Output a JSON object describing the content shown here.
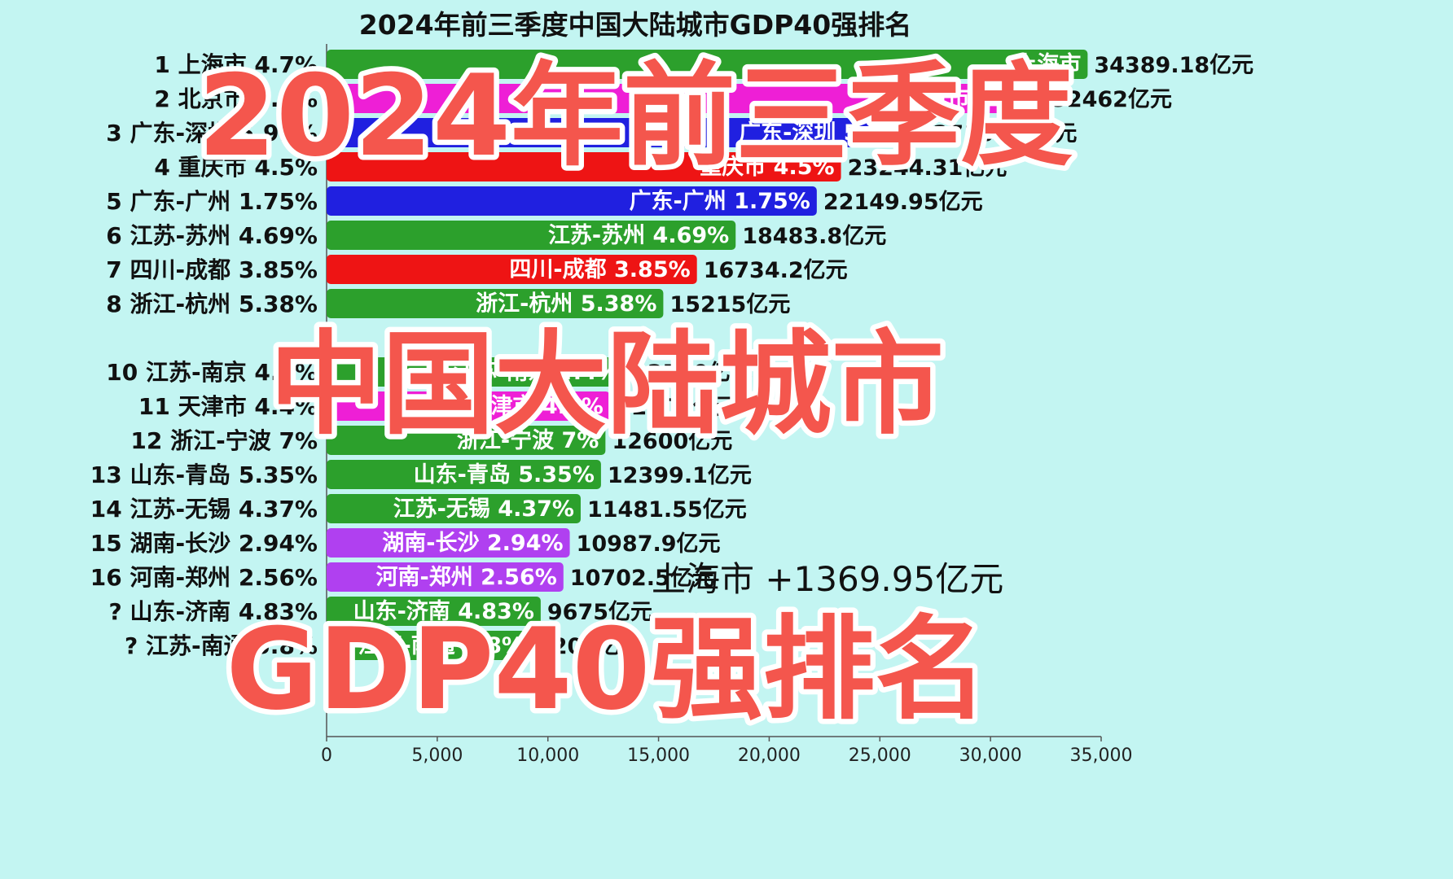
{
  "chart_data": {
    "type": "bar",
    "orientation": "horizontal",
    "title": "2024年前三季度中国大陆城市GDP40强排名",
    "xlim": [
      0,
      35000
    ],
    "xticks": [
      "0",
      "5,000",
      "10,000",
      "15,000",
      "20,000",
      "25,000",
      "30,000",
      "35,000"
    ],
    "unit": "亿元",
    "bars": [
      {
        "label": "1 上海市 4.7%",
        "bar_text": "上海市",
        "value": 34389.18,
        "value_text": "34389.18亿元",
        "color": "#2ca02c"
      },
      {
        "label": "2 北京市 5.2%",
        "bar_text": "北京市 5.2%",
        "value": 32462,
        "value_text": "32462亿元",
        "color": "#ee1fd6"
      },
      {
        "label": "3 广东-深圳 5.99%",
        "bar_text": "广东-深圳 5.99%",
        "value": 27104.2,
        "value_text": "27104.2亿元",
        "color": "#2020e0"
      },
      {
        "label": "4 重庆市 4.5%",
        "bar_text": "重庆市 4.5%",
        "value": 23244.31,
        "value_text": "23244.31亿元",
        "color": "#ee1414"
      },
      {
        "label": "5 广东-广州 1.75%",
        "bar_text": "广东-广州 1.75%",
        "value": 22149.95,
        "value_text": "22149.95亿元",
        "color": "#2020e0"
      },
      {
        "label": "6 江苏-苏州 4.69%",
        "bar_text": "江苏-苏州 4.69%",
        "value": 18483.8,
        "value_text": "18483.8亿元",
        "color": "#2ca02c"
      },
      {
        "label": "7 四川-成都 3.85%",
        "bar_text": "四川-成都 3.85%",
        "value": 16734.2,
        "value_text": "16734.2亿元",
        "color": "#ee1414"
      },
      {
        "label": "8 浙江-杭州 5.38%",
        "bar_text": "浙江-杭州 5.38%",
        "value": 15215,
        "value_text": "15215亿元",
        "color": "#2ca02c"
      },
      {
        "label": "",
        "bar_text": "",
        "value": null,
        "value_text": "",
        "color": ""
      },
      {
        "label": "10 江苏-南京 4.4%",
        "bar_text": "江苏-南京 4.4%",
        "value": 13500,
        "value_text": "13500亿元",
        "color": "#2ca02c"
      },
      {
        "label": "11 天津市 4.4%",
        "bar_text": "天津市 4.4%",
        "value": 12800,
        "value_text": "12800亿元",
        "color": "#ee1fd6"
      },
      {
        "label": "12 浙江-宁波 7%",
        "bar_text": "浙江-宁波 7%",
        "value": 12600,
        "value_text": "12600亿元",
        "color": "#2ca02c"
      },
      {
        "label": "13 山东-青岛 5.35%",
        "bar_text": "山东-青岛 5.35%",
        "value": 12399.1,
        "value_text": "12399.1亿元",
        "color": "#2ca02c"
      },
      {
        "label": "14 江苏-无锡 4.37%",
        "bar_text": "江苏-无锡 4.37%",
        "value": 11481.55,
        "value_text": "11481.55亿元",
        "color": "#2ca02c"
      },
      {
        "label": "15 湖南-长沙 2.94%",
        "bar_text": "湖南-长沙 2.94%",
        "value": 10987.9,
        "value_text": "10987.9亿元",
        "color": "#b040f0"
      },
      {
        "label": "16 河南-郑州 2.56%",
        "bar_text": "河南-郑州 2.56%",
        "value": 10702.5,
        "value_text": "10702.5亿元",
        "color": "#b040f0"
      },
      {
        "label": "? 山东-济南 4.83%",
        "bar_text": "山东-济南 4.83%",
        "value": 9675,
        "value_text": "9675亿元",
        "color": "#2ca02c"
      },
      {
        "label": "? 江苏-南通 5.8%",
        "bar_text": "江苏-南通 5.8%",
        "value": 9200,
        "value_text": "9200亿元",
        "color": "#2ca02c"
      }
    ],
    "annotation": "上海市 +1369.95亿元"
  },
  "overlay": {
    "line1": "2024年前三季度",
    "line2": "中国大陆城市",
    "line3": "GDP40强排名",
    "fill": "#f4564d"
  }
}
